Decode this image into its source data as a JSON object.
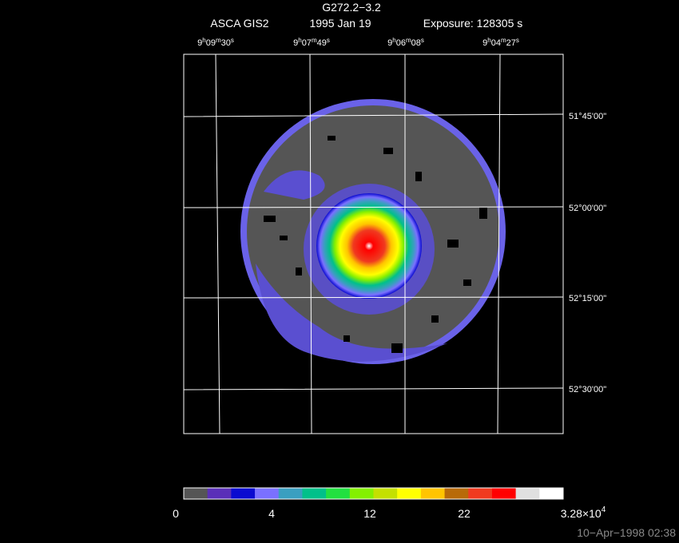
{
  "header": {
    "title": "G272.2−3.2",
    "instrument": "ASCA GIS2",
    "date": "1995 Jan 19",
    "exposure": "Exposure: 128305 s"
  },
  "ra_labels": [
    "9h09m30s",
    "9h07m49s",
    "9h06m08s",
    "9h04m27s"
  ],
  "dec_labels": [
    "51°45'00\"",
    "52°00'00\"",
    "52°15'00\"",
    "52°30'00\""
  ],
  "colorbar": {
    "colors": [
      "#555555",
      "#5a2fb8",
      "#0a0ad0",
      "#7a70ff",
      "#3a9fc0",
      "#00c08a",
      "#22e040",
      "#84f000",
      "#c4e000",
      "#ffff00",
      "#ffc400",
      "#b86a08",
      "#f03a20",
      "#ff0000",
      "#e0e0e0",
      "#ffffff"
    ],
    "labels": [
      "0",
      "4",
      "12",
      "22"
    ],
    "max_label": {
      "mantissa": "3.28×10",
      "exponent": "4"
    }
  },
  "timestamp": "10−Apr−1998 02:38"
}
